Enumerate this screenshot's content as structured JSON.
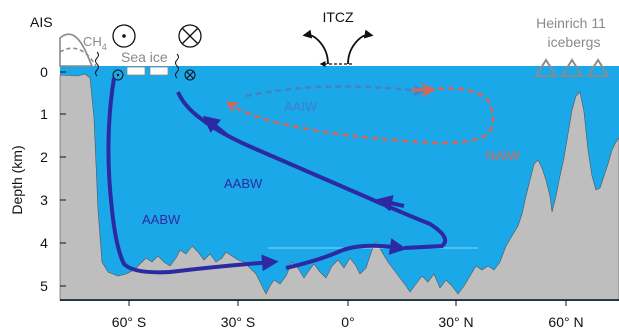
{
  "labels": {
    "ais": "AIS",
    "ch4_base": "CH",
    "ch4_sub": "4",
    "sea_ice": "Sea ice",
    "itcz": "ITCZ",
    "heinrich_line1": "Heinrich 11",
    "heinrich_line2": "icebergs",
    "aaiw": "AAIW",
    "naiw": "NAIW",
    "aabw_upper": "AABW",
    "aabw_lower": "AABW"
  },
  "y_axis": {
    "label": "Depth (km)",
    "ticks": [
      "0",
      "1",
      "2",
      "3",
      "4",
      "5"
    ]
  },
  "x_axis": {
    "ticks": [
      "60° S",
      "30° S",
      "0°",
      "30° N",
      "60° N"
    ]
  },
  "colors": {
    "ocean": "#1ba8e8",
    "seafloor": "#bebebe",
    "aabw_arrow": "#2b2aa3",
    "aaiw_arrow": "#4a7fc1",
    "naiw_arrow": "#d5675a",
    "label_dark_blue": "#2b2aa3",
    "label_mid_blue": "#3d7fd0",
    "label_red": "#d5675a",
    "label_grey": "#8a8a8a"
  },
  "icons": [
    "out-of-page-symbol",
    "into-page-symbol",
    "iceberg-triangle",
    "ice-sheet-dome",
    "itcz-circulation-arrows"
  ]
}
